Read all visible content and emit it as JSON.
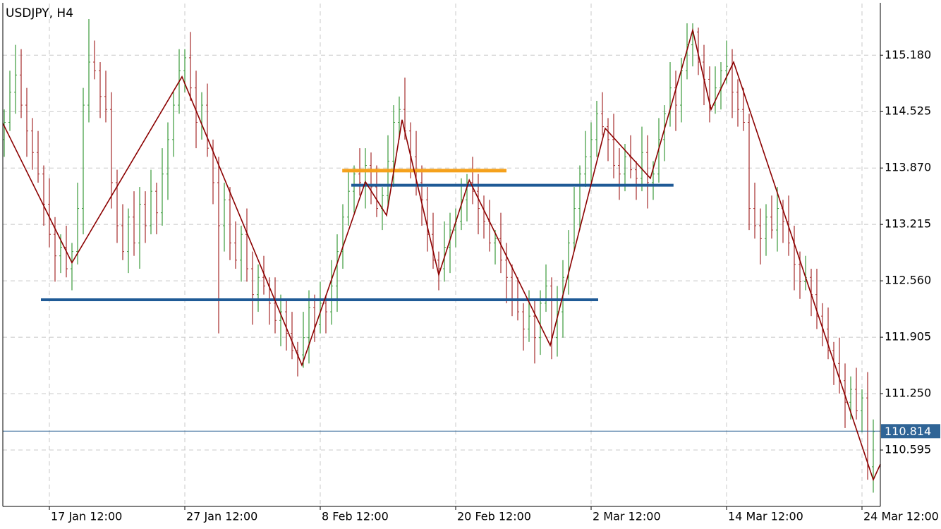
{
  "chart_data": {
    "type": "ohlc",
    "title": "USDJPY, H4",
    "up_color": "#3a9a3a",
    "down_color": "#a52a2a",
    "grid": true,
    "ylim": [
      109.94,
      115.78
    ],
    "yticks": [
      {
        "value": 115.18,
        "label": "115.180"
      },
      114.525,
      {
        "value": 113.87,
        "label": "113.870"
      },
      113.215,
      {
        "value": 112.56,
        "label": "112.560"
      },
      111.905,
      {
        "value": 111.25,
        "label": "111.250"
      },
      110.595
    ],
    "categories": [
      null,
      null,
      null,
      null,
      null,
      null,
      null,
      null,
      "17 Jan 12:00",
      null,
      null,
      null,
      null,
      null,
      null,
      null,
      null,
      null,
      null,
      null,
      null,
      null,
      null,
      null,
      null,
      null,
      null,
      null,
      null,
      null,
      null,
      null,
      "27 Jan 12:00",
      null,
      null,
      null,
      null,
      null,
      null,
      null,
      null,
      null,
      null,
      null,
      null,
      null,
      null,
      null,
      null,
      null,
      null,
      null,
      null,
      null,
      null,
      null,
      "8 Feb 12:00",
      null,
      null,
      null,
      null,
      null,
      null,
      null,
      null,
      null,
      null,
      null,
      null,
      null,
      null,
      null,
      null,
      null,
      null,
      null,
      null,
      null,
      null,
      null,
      "20 Feb 12:00",
      null,
      null,
      null,
      null,
      null,
      null,
      null,
      null,
      null,
      null,
      null,
      null,
      null,
      null,
      null,
      null,
      null,
      null,
      null,
      null,
      null,
      null,
      null,
      "2 Mar 12:00",
      null,
      null,
      null,
      null,
      null,
      null,
      null,
      null,
      null,
      null,
      null,
      null,
      null,
      null,
      null,
      null,
      null,
      null,
      null,
      null,
      null,
      null,
      null,
      "14 Mar 12:00",
      null,
      null,
      null,
      null,
      null,
      null,
      null,
      null,
      null,
      null,
      null,
      null,
      null,
      null,
      null,
      null,
      null,
      null,
      null,
      null,
      null,
      null,
      null,
      "24 Mar 12:00",
      null,
      null
    ],
    "open": [
      114.2,
      114.4,
      114.75,
      114.95,
      114.6,
      114.3,
      114.05,
      113.8,
      113.45,
      113.1,
      112.85,
      112.95,
      112.7,
      112.9,
      113.4,
      114.6,
      115.1,
      115.0,
      114.7,
      114.55,
      113.7,
      113.2,
      112.9,
      113.3,
      113.0,
      113.45,
      113.2,
      113.6,
      113.35,
      113.8,
      114.2,
      114.6,
      115.0,
      115.15,
      114.8,
      114.4,
      114.6,
      114.1,
      113.7,
      113.2,
      113.5,
      113.0,
      112.8,
      113.1,
      112.7,
      112.4,
      112.6,
      112.5,
      112.3,
      112.1,
      112.2,
      111.95,
      111.75,
      111.7,
      111.9,
      112.25,
      112.05,
      112.3,
      112.2,
      112.5,
      112.9,
      113.3,
      113.6,
      113.8,
      113.7,
      113.9,
      113.65,
      113.4,
      113.55,
      113.95,
      114.4,
      114.55,
      114.3,
      114.0,
      113.7,
      113.5,
      113.1,
      112.8,
      112.7,
      112.95,
      113.15,
      113.25,
      113.5,
      113.7,
      113.6,
      113.4,
      113.25,
      113.0,
      113.05,
      112.8,
      112.6,
      112.35,
      112.2,
      112.0,
      112.15,
      111.9,
      112.3,
      112.5,
      111.9,
      112.2,
      112.6,
      113.0,
      113.4,
      113.8,
      114.0,
      114.2,
      114.5,
      114.35,
      114.2,
      113.9,
      113.8,
      114.0,
      113.85,
      113.75,
      114.05,
      113.7,
      113.8,
      114.2,
      114.5,
      114.8,
      114.6,
      115.0,
      115.3,
      115.45,
      115.1,
      114.9,
      114.6,
      114.8,
      115.0,
      115.05,
      114.75,
      114.55,
      114.4,
      113.4,
      113.2,
      113.05,
      113.3,
      113.15,
      113.4,
      113.25,
      113.0,
      112.75,
      112.55,
      112.6,
      112.4,
      112.15,
      112.0,
      111.75,
      111.6,
      111.4,
      111.15,
      111.3,
      111.05,
      111.2,
      110.4
    ],
    "high": [
      114.55,
      115.0,
      115.3,
      115.25,
      114.8,
      114.45,
      114.3,
      113.9,
      113.75,
      113.3,
      113.1,
      113.2,
      113.0,
      113.7,
      114.8,
      115.6,
      115.35,
      115.1,
      115.0,
      114.75,
      113.85,
      113.45,
      113.4,
      113.6,
      113.65,
      113.6,
      113.85,
      113.7,
      114.1,
      114.4,
      114.75,
      115.25,
      115.25,
      115.45,
      115.0,
      114.75,
      114.85,
      114.2,
      114.0,
      113.7,
      113.65,
      113.25,
      113.2,
      113.4,
      112.9,
      112.75,
      112.85,
      112.6,
      112.6,
      112.4,
      112.35,
      112.2,
      111.85,
      112.2,
      112.45,
      112.4,
      112.55,
      112.4,
      112.8,
      113.1,
      113.45,
      113.85,
      113.9,
      114.1,
      114.1,
      114.05,
      113.9,
      113.65,
      114.25,
      114.6,
      114.7,
      114.92,
      114.4,
      114.3,
      113.9,
      113.65,
      113.35,
      112.9,
      113.25,
      113.35,
      113.4,
      113.75,
      113.8,
      114.0,
      113.8,
      113.55,
      113.5,
      113.15,
      113.35,
      113.0,
      112.75,
      112.6,
      112.3,
      112.45,
      112.35,
      112.45,
      112.75,
      112.6,
      112.5,
      112.8,
      113.15,
      113.65,
      113.9,
      114.3,
      114.4,
      114.65,
      114.75,
      114.45,
      114.5,
      114.1,
      114.15,
      114.25,
      113.95,
      114.35,
      114.25,
      113.95,
      114.45,
      114.6,
      115.1,
      115.0,
      115.15,
      115.55,
      115.55,
      115.5,
      115.3,
      115.05,
      115.05,
      115.1,
      115.35,
      115.25,
      114.9,
      114.8,
      114.5,
      113.7,
      113.4,
      113.45,
      113.55,
      113.65,
      113.5,
      113.55,
      113.2,
      112.9,
      112.85,
      112.7,
      112.7,
      112.3,
      112.25,
      111.85,
      111.9,
      111.6,
      111.45,
      111.55,
      111.3,
      111.5,
      110.95
    ],
    "low": [
      114.0,
      114.3,
      114.5,
      114.45,
      114.0,
      113.85,
      113.7,
      113.2,
      112.95,
      112.55,
      112.65,
      112.6,
      112.45,
      112.75,
      113.1,
      114.4,
      114.9,
      114.45,
      114.4,
      113.4,
      113.0,
      112.8,
      112.65,
      112.85,
      112.7,
      113.0,
      113.1,
      113.1,
      113.2,
      113.5,
      114.0,
      114.5,
      114.75,
      114.65,
      114.1,
      114.2,
      114.0,
      113.45,
      111.95,
      112.9,
      112.8,
      112.7,
      112.55,
      112.55,
      112.05,
      112.2,
      112.4,
      112.05,
      111.95,
      111.8,
      111.75,
      111.65,
      111.45,
      111.55,
      111.6,
      111.85,
      111.95,
      111.95,
      112.05,
      112.2,
      112.7,
      113.2,
      113.35,
      113.55,
      113.4,
      113.45,
      113.3,
      113.15,
      113.4,
      113.65,
      114.2,
      114.2,
      113.75,
      113.55,
      113.2,
      112.9,
      112.7,
      112.45,
      112.55,
      112.65,
      112.95,
      113.15,
      113.25,
      113.45,
      113.1,
      113.05,
      112.9,
      112.75,
      112.65,
      112.3,
      112.15,
      112.1,
      111.75,
      111.85,
      111.6,
      111.7,
      112.2,
      111.65,
      111.68,
      111.9,
      112.4,
      112.9,
      113.15,
      113.65,
      113.7,
      114.0,
      114.25,
      113.95,
      113.75,
      113.5,
      113.6,
      113.75,
      113.5,
      113.6,
      113.4,
      113.5,
      113.7,
      113.95,
      114.35,
      114.3,
      114.4,
      114.9,
      115.05,
      114.95,
      114.6,
      114.4,
      114.5,
      114.55,
      114.85,
      114.45,
      114.35,
      114.3,
      113.15,
      113.05,
      112.75,
      112.85,
      113.05,
      112.9,
      113.0,
      112.85,
      112.45,
      112.35,
      112.45,
      112.15,
      112.0,
      111.8,
      111.65,
      111.35,
      111.25,
      110.85,
      110.95,
      110.95,
      110.8,
      110.25,
      110.1
    ],
    "close": [
      114.4,
      114.75,
      114.95,
      114.6,
      114.3,
      114.05,
      113.8,
      113.45,
      113.1,
      112.85,
      112.95,
      112.7,
      112.9,
      113.4,
      114.6,
      115.1,
      115.0,
      114.7,
      114.55,
      113.7,
      113.2,
      112.9,
      113.3,
      113.0,
      113.45,
      113.2,
      113.6,
      113.35,
      113.8,
      114.2,
      114.6,
      115.0,
      115.15,
      114.8,
      114.4,
      114.6,
      114.1,
      113.7,
      113.2,
      113.5,
      113.0,
      112.8,
      113.1,
      112.7,
      112.4,
      112.6,
      112.5,
      112.3,
      112.1,
      112.2,
      111.95,
      111.75,
      111.7,
      111.9,
      112.25,
      112.05,
      112.3,
      112.2,
      112.5,
      112.9,
      113.3,
      113.6,
      113.8,
      113.7,
      113.9,
      113.65,
      113.4,
      113.55,
      113.95,
      114.4,
      114.55,
      114.3,
      114.0,
      113.7,
      113.5,
      113.1,
      112.8,
      112.7,
      112.95,
      113.15,
      113.25,
      113.5,
      113.7,
      113.6,
      113.4,
      113.25,
      113.0,
      113.05,
      112.8,
      112.6,
      112.35,
      112.2,
      112.0,
      112.15,
      111.9,
      112.3,
      112.5,
      111.9,
      112.2,
      112.6,
      113.0,
      113.4,
      113.8,
      114.0,
      114.2,
      114.5,
      114.35,
      114.2,
      113.9,
      113.8,
      114.0,
      113.85,
      113.75,
      114.05,
      113.7,
      113.8,
      114.2,
      114.5,
      114.8,
      114.6,
      115.0,
      115.3,
      115.45,
      115.1,
      114.9,
      114.6,
      114.8,
      115.0,
      115.05,
      114.75,
      114.55,
      114.4,
      113.4,
      113.2,
      113.05,
      113.3,
      113.15,
      113.4,
      113.25,
      113.0,
      112.75,
      112.55,
      112.6,
      112.4,
      112.15,
      112.0,
      111.75,
      111.6,
      111.4,
      111.15,
      111.3,
      111.05,
      111.2,
      110.4,
      110.81
    ],
    "zigzag": {
      "color": "#8b0000",
      "x": [
        -0.25,
        12,
        31.5,
        52.75,
        64,
        67.75,
        70.5,
        77,
        82.4,
        96.75,
        106.5,
        114.5,
        122,
        125.25,
        129.25,
        154,
        155.25
      ],
      "y": [
        114.39,
        112.77,
        114.93,
        111.58,
        113.71,
        113.32,
        114.43,
        112.63,
        113.73,
        111.81,
        114.33,
        113.75,
        115.47,
        114.55,
        115.1,
        110.25,
        110.43
      ]
    },
    "levels": [
      {
        "color": "#1f5a96",
        "value": 112.34,
        "from": 6.5,
        "to": 105.25,
        "width": 4
      },
      {
        "color": "#1f5a96",
        "value": 113.67,
        "from": 61.5,
        "to": 118.6,
        "width": 4
      },
      {
        "color": "#f5a11c",
        "value": 113.84,
        "from": 59.9,
        "to": 89,
        "width": 5
      }
    ],
    "current_price": 110.814,
    "current_price_color": "#2f6496"
  }
}
